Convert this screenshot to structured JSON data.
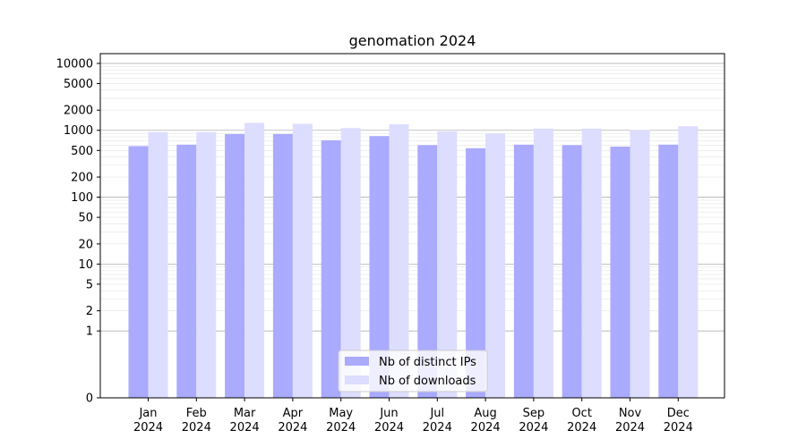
{
  "chart_data": {
    "type": "bar",
    "title": "genomation 2024",
    "xlabel": "",
    "ylabel": "",
    "yscale": "symlog",
    "ylim": [
      0,
      14000
    ],
    "yticks": [
      0,
      1,
      2,
      5,
      10,
      20,
      50,
      100,
      200,
      500,
      1000,
      2000,
      5000,
      10000
    ],
    "categories": [
      "Jan\n2024",
      "Feb\n2024",
      "Mar\n2024",
      "Apr\n2024",
      "May\n2024",
      "Jun\n2024",
      "Jul\n2024",
      "Aug\n2024",
      "Sep\n2024",
      "Oct\n2024",
      "Nov\n2024",
      "Dec\n2024"
    ],
    "series": [
      {
        "name": "Nb of distinct IPs",
        "color": "#aaaaff",
        "values": [
          580,
          610,
          880,
          880,
          710,
          820,
          600,
          540,
          610,
          600,
          570,
          610
        ]
      },
      {
        "name": "Nb of downloads",
        "color": "#ddddff",
        "values": [
          940,
          940,
          1290,
          1250,
          1080,
          1230,
          960,
          890,
          1060,
          1060,
          1010,
          1150
        ]
      }
    ],
    "grid": true,
    "legend_position": "bottom-center"
  }
}
